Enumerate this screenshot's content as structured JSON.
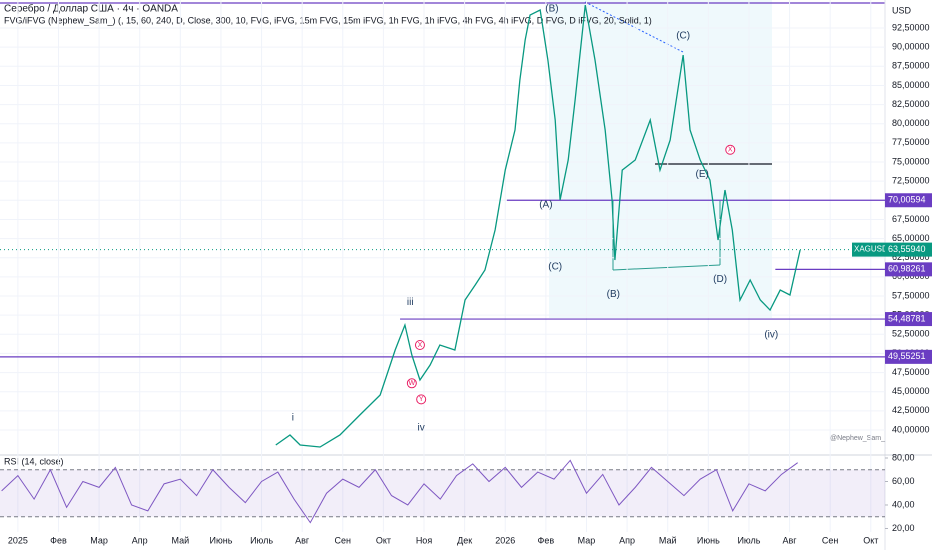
{
  "header": {
    "usd": "USD",
    "watermark": "@Nephew_Sam_"
  },
  "chart_data": [
    {
      "type": "line",
      "title": "Серебро / Доллар США · 4ч · OANDA",
      "subtitle": "FVG/iFVG (Nephew_Sam_) (, 15, 60, 240, D, Close, 300, 10, FVG, iFVG, 15m FVG, 15m iFVG, 1h FVG, 1h iFVG, 4h FVG, 4h iFVG, D FVG, D iFVG, 20, Solid, 1)",
      "x": [
        6.35,
        6.7,
        6.95,
        7.44,
        7.93,
        8.42,
        8.92,
        9.29,
        9.53,
        9.7,
        9.9,
        10.15,
        10.39,
        10.76,
        11.01,
        11.26,
        11.5,
        11.75,
        12.0,
        12.24,
        12.36,
        12.49,
        12.61,
        12.86,
        13.05,
        13.23,
        13.35,
        13.55,
        13.72,
        13.97,
        14.21,
        14.46,
        14.63,
        14.7,
        14.88,
        15.2,
        15.57,
        15.81,
        16.06,
        16.38,
        16.55,
        16.8,
        17.04,
        17.24,
        17.41,
        17.59,
        17.78,
        18.03,
        18.28,
        18.52,
        18.77,
        19.01,
        19.26
      ],
      "series": [
        {
          "name": "XAGUSD",
          "color": "#089981",
          "values": [
            38.04,
            39.35,
            38.04,
            37.78,
            39.35,
            41.96,
            44.57,
            50.45,
            53.71,
            49.8,
            46.53,
            48.49,
            51.1,
            50.45,
            56.98,
            58.94,
            60.9,
            66.12,
            73.95,
            79.18,
            85.71,
            90.93,
            94.2,
            94.85,
            88.32,
            80.48,
            70.04,
            75.26,
            83.1,
            95.5,
            88.32,
            79.18,
            70.04,
            62.2,
            73.95,
            75.26,
            80.48,
            73.95,
            77.87,
            88.97,
            79.18,
            75.26,
            72.65,
            64.81,
            71.34,
            66.12,
            56.98,
            59.59,
            56.98,
            55.67,
            58.28,
            57.63,
            63.51
          ]
        }
      ],
      "last_value": {
        "value": 63.5594,
        "label": "63,55940"
      },
      "xlim": [
        -0.44,
        21.35
      ],
      "ylim": [
        35.69,
        96.16
      ],
      "yticks": [
        {
          "value": 40,
          "label": "40,00000"
        },
        {
          "value": 42.5,
          "label": "42,50000"
        },
        {
          "value": 45,
          "label": "45,00000"
        },
        {
          "value": 47.5,
          "label": "47,50000"
        },
        {
          "value": 50,
          "label": "50,00000"
        },
        {
          "value": 52.5,
          "label": "52,50000"
        },
        {
          "value": 55,
          "label": "55,00000"
        },
        {
          "value": 57.5,
          "label": "57,50000"
        },
        {
          "value": 60,
          "label": "60,00000"
        },
        {
          "value": 62.5,
          "label": "62,50000"
        },
        {
          "value": 65,
          "label": "65,00000"
        },
        {
          "value": 67.5,
          "label": "67,50000"
        },
        {
          "value": 70,
          "label": "70,00000"
        },
        {
          "value": 72.5,
          "label": "72,50000"
        },
        {
          "value": 75,
          "label": "75,00000"
        },
        {
          "value": 77.5,
          "label": "77,50000"
        },
        {
          "value": 80,
          "label": "80,00000"
        },
        {
          "value": 82.5,
          "label": "82,50000"
        },
        {
          "value": 85,
          "label": "85,00000"
        },
        {
          "value": 87.5,
          "label": "87,50000"
        },
        {
          "value": 90,
          "label": "90,00000"
        },
        {
          "value": 92.5,
          "label": "92,50000"
        }
      ],
      "levels": [
        {
          "value": 70.00594,
          "label": "70,00594",
          "start": 12.04
        },
        {
          "value": 60.98261,
          "label": "60,98261",
          "start": 18.65
        },
        {
          "value": 54.48781,
          "label": "54,48781",
          "start": 9.41
        },
        {
          "value": 49.55251,
          "label": "49,55251",
          "start": -0.44
        }
      ],
      "annotations": [
        {
          "text": "(B)",
          "x": 13.15,
          "y": 95.0
        },
        {
          "text": "(C)",
          "x": 16.38,
          "y": 91.46
        },
        {
          "text": "(A)",
          "x": 13.0,
          "y": 69.4
        },
        {
          "text": "(E)",
          "x": 16.85,
          "y": 73.4
        },
        {
          "text": "(D)",
          "x": 17.29,
          "y": 59.7
        },
        {
          "text": "(B)",
          "x": 14.66,
          "y": 57.7
        },
        {
          "text": "(C)",
          "x": 13.23,
          "y": 61.3
        },
        {
          "text": "iii",
          "x": 9.66,
          "y": 56.7
        },
        {
          "text": "i",
          "x": 6.77,
          "y": 41.6
        },
        {
          "text": "iv",
          "x": 9.93,
          "y": 40.3
        },
        {
          "text": "(iv)",
          "x": 18.55,
          "y": 52.4
        },
        {
          "text": "X",
          "x": 9.9,
          "y": 51.1
        },
        {
          "text": "W",
          "x": 9.7,
          "y": 46.1
        },
        {
          "text": "Y",
          "x": 9.93,
          "y": 44.0
        },
        {
          "text": "X",
          "x": 17.54,
          "y": 76.6
        }
      ]
    },
    {
      "type": "line",
      "title": "RSI (14, close)",
      "x": [
        -0.4,
        0,
        0.4,
        0.8,
        1.2,
        1.6,
        2,
        2.4,
        2.8,
        3.2,
        3.6,
        4,
        4.4,
        4.8,
        5.2,
        5.6,
        6,
        6.4,
        6.8,
        7.2,
        7.6,
        8,
        8.4,
        8.8,
        9.2,
        9.6,
        10,
        10.4,
        10.8,
        11.2,
        11.6,
        12,
        12.4,
        12.8,
        13.2,
        13.6,
        14,
        14.4,
        14.8,
        15.2,
        15.6,
        16,
        16.4,
        16.8,
        17.2,
        17.6,
        18,
        18.4,
        18.8,
        19.2
      ],
      "series": [
        {
          "name": "RSI",
          "color": "#7e57c2",
          "values": [
            52,
            65,
            45,
            70,
            38,
            60,
            55,
            72,
            40,
            35,
            58,
            62,
            48,
            70,
            55,
            42,
            60,
            68,
            45,
            25,
            50,
            62,
            55,
            70,
            48,
            40,
            58,
            45,
            65,
            75,
            60,
            72,
            55,
            68,
            62,
            78,
            50,
            66,
            40,
            55,
            72,
            60,
            48,
            62,
            70,
            35,
            58,
            52,
            66,
            76
          ]
        }
      ],
      "xlim": [
        -0.44,
        21.35
      ],
      "ylim": [
        17,
        80
      ],
      "yticks": [
        {
          "value": 20,
          "label": "20,00"
        },
        {
          "value": 40,
          "label": "40,00"
        },
        {
          "value": 60,
          "label": "60,00"
        },
        {
          "value": 80,
          "label": "80,00"
        }
      ],
      "band": [
        30,
        70
      ],
      "xticks": [
        {
          "value": 0,
          "label": "2025"
        },
        {
          "value": 1,
          "label": "Фев"
        },
        {
          "value": 2,
          "label": "Мар"
        },
        {
          "value": 3,
          "label": "Апр"
        },
        {
          "value": 4,
          "label": "Май"
        },
        {
          "value": 5,
          "label": "Июнь"
        },
        {
          "value": 6,
          "label": "Июль"
        },
        {
          "value": 7,
          "label": "Авг"
        },
        {
          "value": 8,
          "label": "Сен"
        },
        {
          "value": 9,
          "label": "Окт"
        },
        {
          "value": 10,
          "label": "Ноя"
        },
        {
          "value": 11,
          "label": "Дек"
        },
        {
          "value": 12,
          "label": "2026"
        },
        {
          "value": 13,
          "label": "Фев"
        },
        {
          "value": 14,
          "label": "Мар"
        },
        {
          "value": 15,
          "label": "Апр"
        },
        {
          "value": 16,
          "label": "Май"
        },
        {
          "value": 17,
          "label": "Июнь"
        },
        {
          "value": 18,
          "label": "Июль"
        },
        {
          "value": 19,
          "label": "Авг"
        },
        {
          "value": 20,
          "label": "Сен"
        },
        {
          "value": 21,
          "label": "Окт"
        }
      ]
    }
  ]
}
